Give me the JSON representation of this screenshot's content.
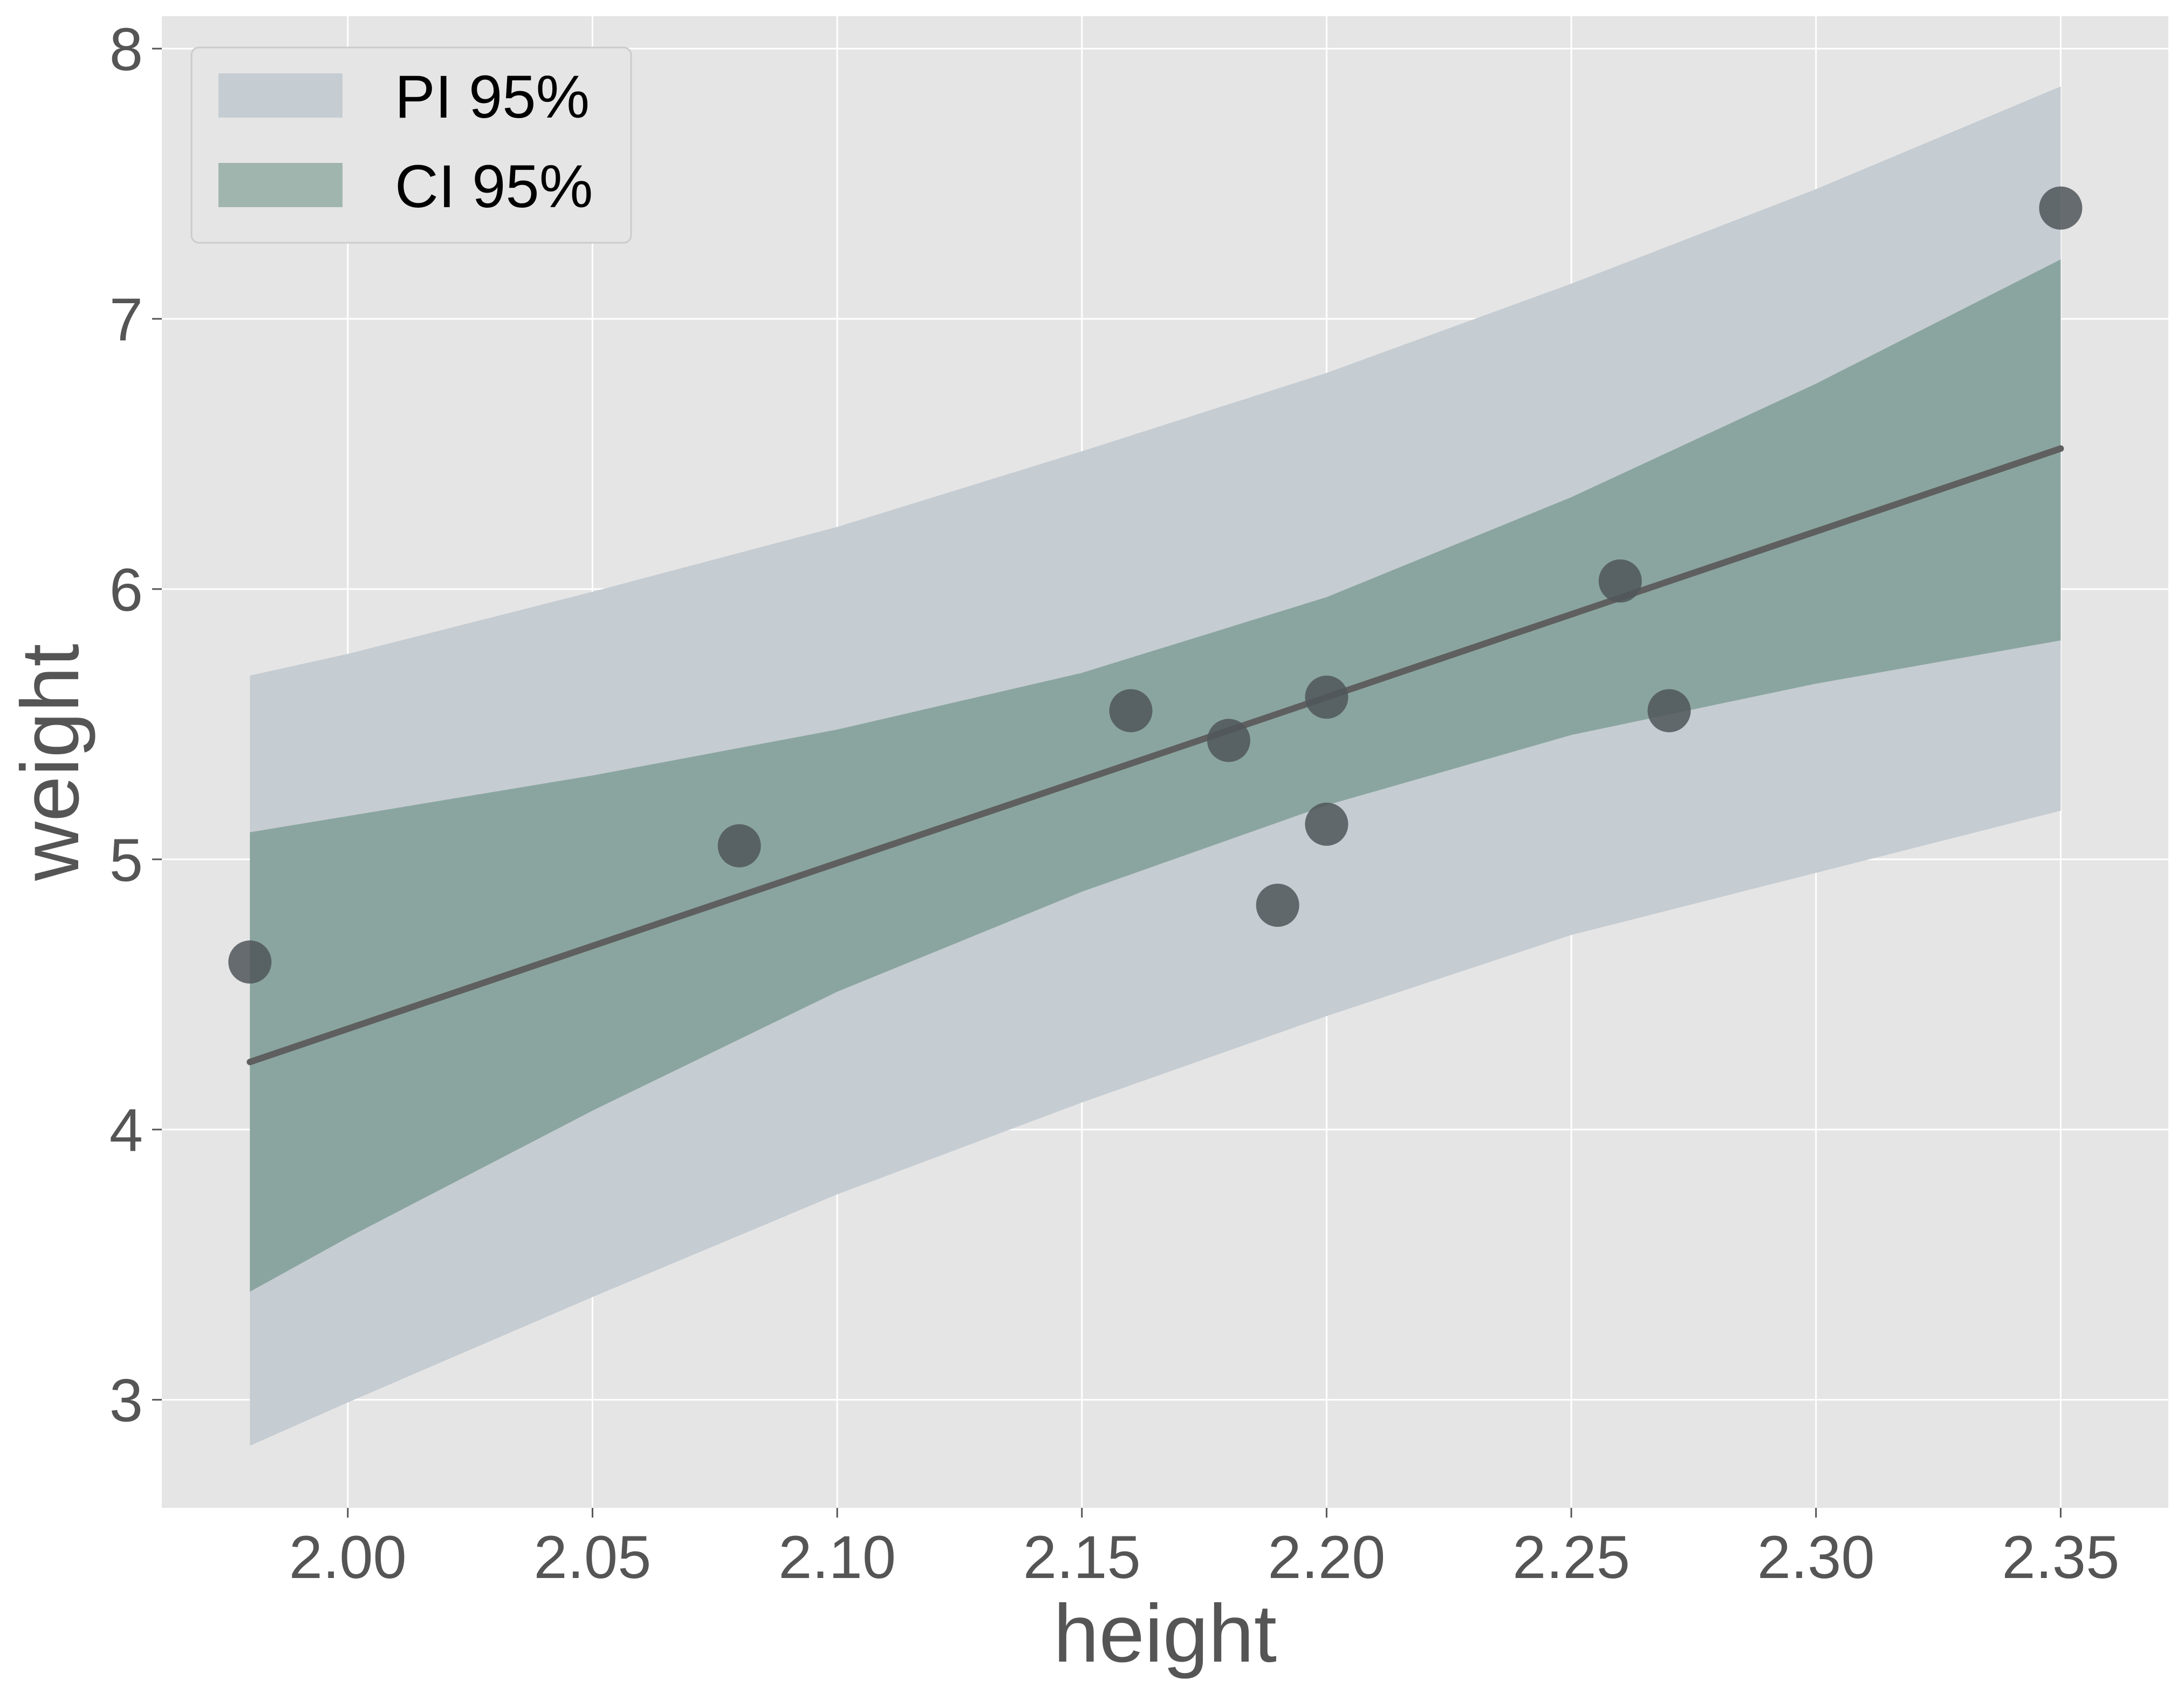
{
  "chart_data": {
    "type": "scatter",
    "xlabel": "height",
    "ylabel": "weight",
    "xlim": [
      1.962,
      2.372
    ],
    "ylim": [
      2.6,
      8.12
    ],
    "xticks": [
      2.0,
      2.05,
      2.1,
      2.15,
      2.2,
      2.25,
      2.3,
      2.35
    ],
    "xtick_labels": [
      "2.00",
      "2.05",
      "2.10",
      "2.15",
      "2.20",
      "2.25",
      "2.30",
      "2.35"
    ],
    "yticks": [
      3,
      4,
      5,
      6,
      7,
      8
    ],
    "ytick_labels": [
      "3",
      "4",
      "5",
      "6",
      "7",
      "8"
    ],
    "grid": true,
    "legend": {
      "position": "top-left",
      "entries": [
        {
          "label": "PI 95%",
          "color": "#c5ccd2"
        },
        {
          "label": "CI 95%",
          "color": "#a0b5ae"
        }
      ]
    },
    "points": {
      "x": [
        1.98,
        2.08,
        2.16,
        2.18,
        2.19,
        2.2,
        2.2,
        2.26,
        2.27,
        2.35
      ],
      "y": [
        4.62,
        5.05,
        5.55,
        5.44,
        4.83,
        5.6,
        5.13,
        6.03,
        5.55,
        7.41
      ],
      "color": "#4f5659"
    },
    "fit_line": {
      "x": [
        1.98,
        2.35
      ],
      "y": [
        4.25,
        6.52
      ],
      "color": "#5f5f5f"
    },
    "ci_band": {
      "label": "CI 95%",
      "color": "#8aa59f",
      "x": [
        1.98,
        2.0,
        2.05,
        2.1,
        2.15,
        2.2,
        2.25,
        2.3,
        2.35
      ],
      "lower": [
        3.4,
        3.6,
        4.07,
        4.51,
        4.88,
        5.2,
        5.46,
        5.65,
        5.81
      ],
      "upper": [
        5.1,
        5.16,
        5.31,
        5.48,
        5.69,
        5.97,
        6.34,
        6.76,
        7.22
      ]
    },
    "pi_band": {
      "label": "PI 95%",
      "color": "#c5ccd2",
      "x": [
        1.98,
        2.0,
        2.05,
        2.1,
        2.15,
        2.2,
        2.25,
        2.3,
        2.35
      ],
      "lower": [
        2.83,
        2.99,
        3.38,
        3.76,
        4.1,
        4.42,
        4.72,
        4.95,
        5.18
      ],
      "upper": [
        5.68,
        5.76,
        5.99,
        6.23,
        6.51,
        6.8,
        7.13,
        7.48,
        7.86
      ]
    },
    "colors": {
      "panel_background": "#e5e5e5",
      "grid": "#ffffff",
      "legend_background": "#e5e5e5",
      "legend_border": "#cccccc"
    }
  }
}
